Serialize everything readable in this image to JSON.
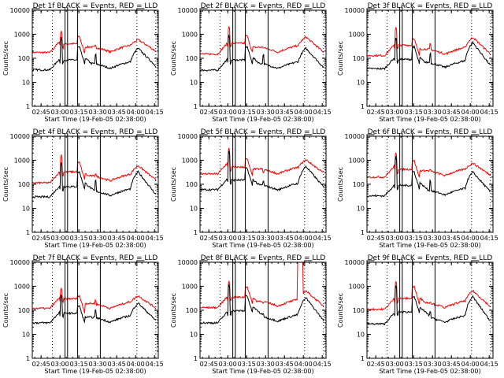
{
  "chart_data": {
    "type": "line",
    "layout": "3x3 grid",
    "shared": {
      "ylabel": "Counts/sec",
      "xlabel": "Start Time (19-Feb-05 02:38:00)",
      "yscale": "log",
      "ylim": [
        1,
        10000
      ],
      "ytick_labels": [
        "1",
        "10",
        "100",
        "1000",
        "10000"
      ],
      "xlim_minutes_after_start": [
        0,
        100
      ],
      "xtick_labels": [
        "02:45",
        "03:00",
        "03:15",
        "03:30",
        "03:45",
        "04:00",
        "04:15"
      ],
      "xtick_minutes_after_start": [
        7,
        22,
        37,
        52,
        67,
        82,
        97
      ],
      "series_colors": {
        "events": "#000000",
        "lld": "#ff0000"
      },
      "dotted_vertical_lines_minutes": [
        16,
        83,
        98
      ],
      "solid_vertical_lines_minutes": [
        26,
        28,
        36,
        54
      ]
    },
    "panels": [
      {
        "title": "Det 1f BLACK = Events, RED = LLD",
        "events": {
          "base": 33,
          "flare1": 750,
          "plateau": 85,
          "flare2": 290,
          "spike3": 140,
          "mid": 38,
          "flare3": 260,
          "end": 48
        },
        "lld": {
          "base": 175,
          "flare1": 1400,
          "plateau": 400,
          "flare2": 800,
          "spike3": 340,
          "mid": 185,
          "flare3": 600,
          "end": 200
        }
      },
      {
        "title": "Det 2f BLACK = Events, RED = LLD",
        "events": {
          "base": 32,
          "flare1": 950,
          "plateau": 85,
          "flare2": 300,
          "spike3": 140,
          "mid": 38,
          "flare3": 260,
          "end": 42
        },
        "lld": {
          "base": 150,
          "flare1": 2300,
          "plateau": 420,
          "flare2": 850,
          "spike3": 280,
          "mid": 180,
          "flare3": 780,
          "end": 180
        }
      },
      {
        "title": "Det 3f BLACK = Events, RED = LLD",
        "events": {
          "base": 37,
          "flare1": 750,
          "plateau": 90,
          "flare2": 300,
          "spike3": 160,
          "mid": 42,
          "flare3": 450,
          "end": 50
        },
        "lld": {
          "base": 130,
          "flare1": 2100,
          "plateau": 350,
          "flare2": 650,
          "spike3": 380,
          "mid": 150,
          "flare3": 750,
          "end": 150
        }
      },
      {
        "title": "Det 4f BLACK = Events, RED = LLD",
        "events": {
          "base": 30,
          "flare1": 800,
          "plateau": 80,
          "flare2": 320,
          "spike3": 140,
          "mid": 34,
          "flare3": 330,
          "end": 38
        },
        "lld": {
          "base": 115,
          "flare1": 1700,
          "plateau": 330,
          "flare2": 800,
          "spike3": 280,
          "mid": 140,
          "flare3": 600,
          "end": 150
        }
      },
      {
        "title": "Det 5f BLACK = Events, RED = LLD",
        "events": {
          "base": 60,
          "flare1": 2500,
          "plateau": 150,
          "flare2": 450,
          "spike3": 130,
          "mid": 58,
          "flare3": 560,
          "end": 78
        },
        "lld": {
          "base": 270,
          "flare1": 3100,
          "plateau": 520,
          "flare2": 1100,
          "spike3": 300,
          "mid": 270,
          "flare3": 1050,
          "end": 300
        }
      },
      {
        "title": "Det 6f BLACK = Events, RED = LLD",
        "events": {
          "base": 33,
          "flare1": 1400,
          "plateau": 90,
          "flare2": 330,
          "spike3": 140,
          "mid": 36,
          "flare3": 320,
          "end": 48
        },
        "lld": {
          "base": 200,
          "flare1": 2000,
          "plateau": 420,
          "flare2": 950,
          "spike3": 400,
          "mid": 230,
          "flare3": 760,
          "end": 240
        }
      },
      {
        "title": "Det 7f BLACK = Events, RED = LLD",
        "events": {
          "base": 30,
          "flare1": 420,
          "plateau": 75,
          "flare2": 150,
          "spike3": 100,
          "mid": 32,
          "flare3": 200,
          "end": 38
        },
        "lld": {
          "base": 120,
          "flare1": 800,
          "plateau": 300,
          "flare2": 400,
          "spike3": 260,
          "mid": 120,
          "flare3": 400,
          "end": 125
        }
      },
      {
        "title": "Det 8f BLACK = Events, RED = LLD",
        "events": {
          "base": 30,
          "flare1": 1200,
          "plateau": 95,
          "flare2": 400,
          "spike3": 70,
          "mid": 35,
          "flare3": 330,
          "end": 38
        },
        "lld": {
          "base": 130,
          "flare1": 1800,
          "plateau": 350,
          "flare2": 950,
          "spike3": 200,
          "mid": 150,
          "flare3": 650,
          "end": 150
        },
        "gap_minutes": [
          77,
          82
        ]
      },
      {
        "title": "Det 9f BLACK = Events, RED = LLD",
        "events": {
          "base": 27,
          "flare1": 1100,
          "plateau": 85,
          "flare2": 380,
          "spike3": 90,
          "mid": 32,
          "flare3": 370,
          "end": 35
        },
        "lld": {
          "base": 110,
          "flare1": 1700,
          "plateau": 310,
          "flare2": 950,
          "spike3": 220,
          "mid": 130,
          "flare3": 650,
          "end": 140
        }
      }
    ]
  }
}
